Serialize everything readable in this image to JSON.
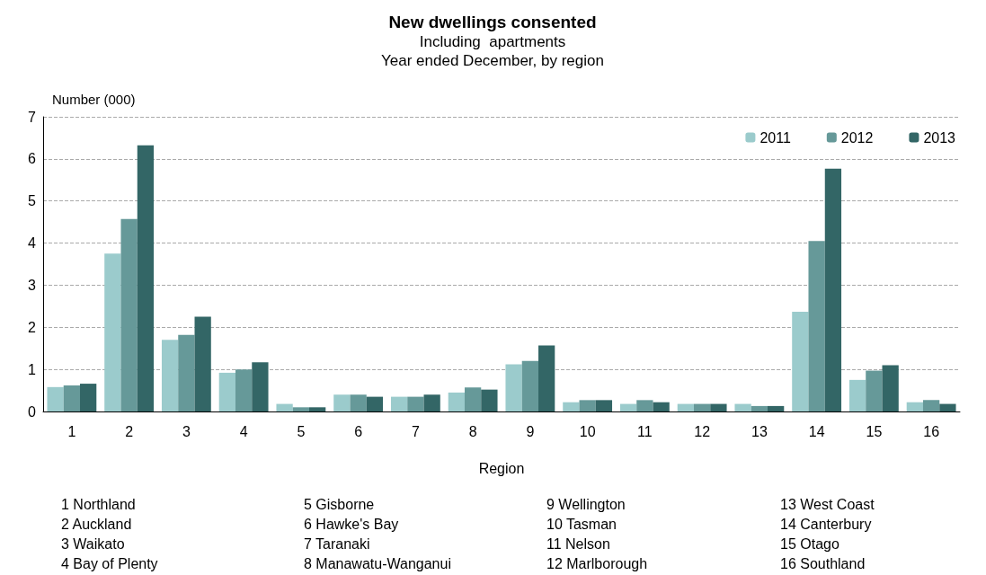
{
  "chart_data": {
    "type": "bar",
    "title": "New dwellings consented",
    "subtitle": "Including  apartments\nYear ended December, by region",
    "xlabel": "Region",
    "ylabel": "Number (000)",
    "categories": [
      "1",
      "2",
      "3",
      "4",
      "5",
      "6",
      "7",
      "8",
      "9",
      "10",
      "11",
      "12",
      "13",
      "14",
      "15",
      "16"
    ],
    "series": [
      {
        "name": "2011",
        "color": "#9bcbcc",
        "values": [
          0.58,
          3.75,
          1.7,
          0.92,
          0.18,
          0.4,
          0.35,
          0.45,
          1.12,
          0.22,
          0.18,
          0.18,
          0.18,
          2.37,
          0.75,
          0.22
        ]
      },
      {
        "name": "2012",
        "color": "#669999",
        "values": [
          0.62,
          4.57,
          1.82,
          1.0,
          0.1,
          0.4,
          0.35,
          0.57,
          1.2,
          0.27,
          0.27,
          0.18,
          0.13,
          4.05,
          0.97,
          0.27
        ]
      },
      {
        "name": "2013",
        "color": "#336666",
        "values": [
          0.66,
          6.32,
          2.25,
          1.17,
          0.1,
          0.35,
          0.4,
          0.52,
          1.57,
          0.27,
          0.22,
          0.18,
          0.13,
          5.77,
          1.1,
          0.18
        ]
      }
    ],
    "ylim": [
      0,
      7
    ],
    "yticks": [
      0,
      1,
      2,
      3,
      4,
      5,
      6,
      7
    ],
    "grid": "y",
    "legend": "top right",
    "annotations": [
      "1 Northland",
      "2 Auckland",
      "3 Waikato",
      "4 Bay of Plenty",
      "5 Gisborne",
      "6 Hawke's Bay",
      "7 Taranaki",
      "8 Manawatu-Wanganui",
      "9 Wellington",
      "10 Tasman",
      "11 Nelson",
      "12 Marlborough",
      "13 West Coast",
      "14 Canterbury",
      "15 Otago",
      "16 Southland"
    ]
  }
}
